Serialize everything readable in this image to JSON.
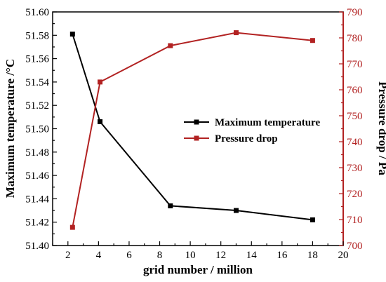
{
  "chart_data": {
    "type": "line",
    "xlabel": "grid number / million",
    "ylabel_left": "Maximum temperature /°C",
    "ylabel_right": "Pressure drop / Pa",
    "xlim": [
      1,
      20
    ],
    "xticks": [
      2,
      4,
      6,
      8,
      10,
      12,
      14,
      16,
      18,
      20
    ],
    "ylim_left": [
      51.4,
      51.6
    ],
    "yticks_left": [
      "51.40",
      "51.42",
      "51.44",
      "51.46",
      "51.48",
      "51.50",
      "51.52",
      "51.54",
      "51.56",
      "51.58",
      "51.60"
    ],
    "ylim_right": [
      700,
      790
    ],
    "yticks_right": [
      "700",
      "710",
      "720",
      "730",
      "740",
      "750",
      "760",
      "770",
      "780",
      "790"
    ],
    "legend_position": "center-right",
    "series": [
      {
        "name": "Maximum temperature",
        "axis": "left",
        "color": "#000000",
        "x": [
          2.3,
          4.1,
          8.7,
          13.0,
          18.0
        ],
        "values": [
          51.581,
          51.506,
          51.434,
          51.43,
          51.422
        ]
      },
      {
        "name": "Pressure drop",
        "axis": "right",
        "color": "#b22222",
        "x": [
          2.3,
          4.1,
          8.7,
          13.0,
          18.0
        ],
        "values": [
          707,
          763,
          777,
          782,
          779
        ]
      }
    ]
  }
}
